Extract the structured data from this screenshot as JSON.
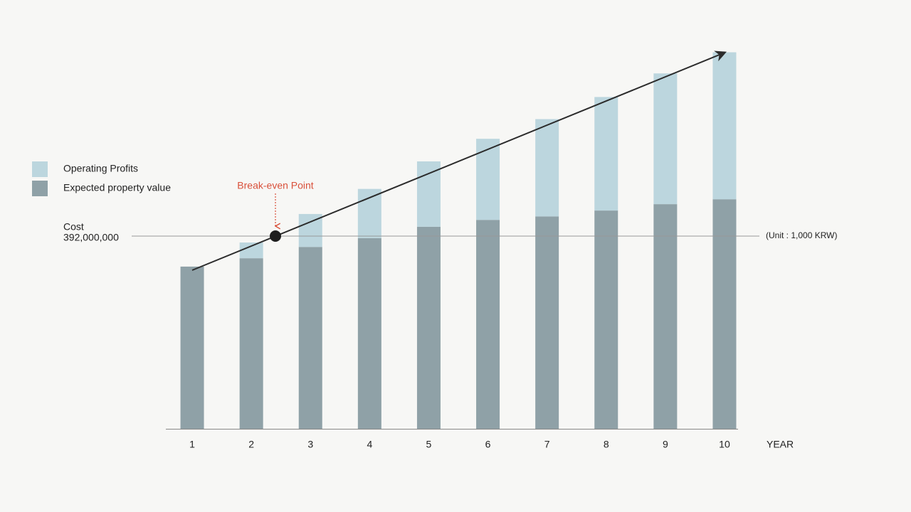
{
  "chart_data": {
    "type": "stacked_bar",
    "categories": [
      "1",
      "2",
      "3",
      "4",
      "5",
      "6",
      "7",
      "8",
      "9",
      "10"
    ],
    "x_label": "YEAR",
    "series": [
      {
        "name": "Expected property value",
        "color": "#8fa1a7",
        "values": [
          330000000,
          347000000,
          370000000,
          388000000,
          411000000,
          425000000,
          432000000,
          444000000,
          457000000,
          467000000
        ]
      },
      {
        "name": "Operating Profits",
        "color": "#bcd6de",
        "values": [
          0,
          32000000,
          67000000,
          100000000,
          133000000,
          165000000,
          198000000,
          231000000,
          266000000,
          299000000
        ]
      }
    ],
    "ylim": [
      0,
      800000000
    ],
    "cost_line": {
      "label": "Cost",
      "value": 392000000,
      "value_label": "392,000,000"
    },
    "unit_note": "(Unit : 1,000 KRW)",
    "annotation": "Break-even Point"
  }
}
